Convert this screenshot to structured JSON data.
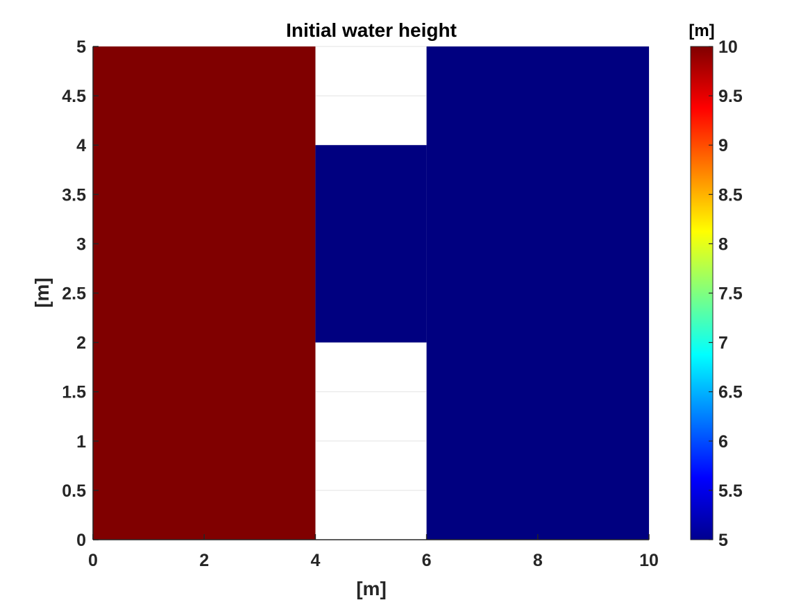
{
  "chart_data": {
    "type": "heatmap",
    "title": "Initial water height",
    "xlabel": "[m]",
    "ylabel": "[m]",
    "xlim": [
      0,
      10
    ],
    "ylim": [
      0,
      5
    ],
    "xticks": [
      0,
      2,
      4,
      6,
      8,
      10
    ],
    "xtick_labels": [
      "0",
      "2",
      "4",
      "6",
      "8",
      "10"
    ],
    "yticks": [
      0,
      0.5,
      1,
      1.5,
      2,
      2.5,
      3,
      3.5,
      4,
      4.5,
      5
    ],
    "ytick_labels": [
      "0",
      "0.5",
      "1",
      "1.5",
      "2",
      "2.5",
      "3",
      "3.5",
      "4",
      "4.5",
      "5"
    ],
    "grid": true,
    "regions": [
      {
        "x": [
          0,
          4
        ],
        "y": [
          0,
          5
        ],
        "value": 10
      },
      {
        "x": [
          4,
          6
        ],
        "y": [
          2,
          4
        ],
        "value": 5
      },
      {
        "x": [
          6,
          10
        ],
        "y": [
          0,
          5
        ],
        "value": 5
      }
    ],
    "no_data_regions": [
      {
        "x": [
          4,
          6
        ],
        "y": [
          0,
          2
        ]
      },
      {
        "x": [
          4,
          6
        ],
        "y": [
          4,
          5
        ]
      }
    ],
    "colorbar": {
      "label": "[m]",
      "colormap": "jet",
      "limits": [
        5,
        10
      ],
      "ticks": [
        5,
        5.5,
        6,
        6.5,
        7,
        7.5,
        8,
        8.5,
        9,
        9.5,
        10
      ],
      "tick_labels": [
        "5",
        "5.5",
        "6",
        "6.5",
        "7",
        "7.5",
        "8",
        "8.5",
        "9",
        "9.5",
        "10"
      ],
      "placement": "right"
    }
  }
}
